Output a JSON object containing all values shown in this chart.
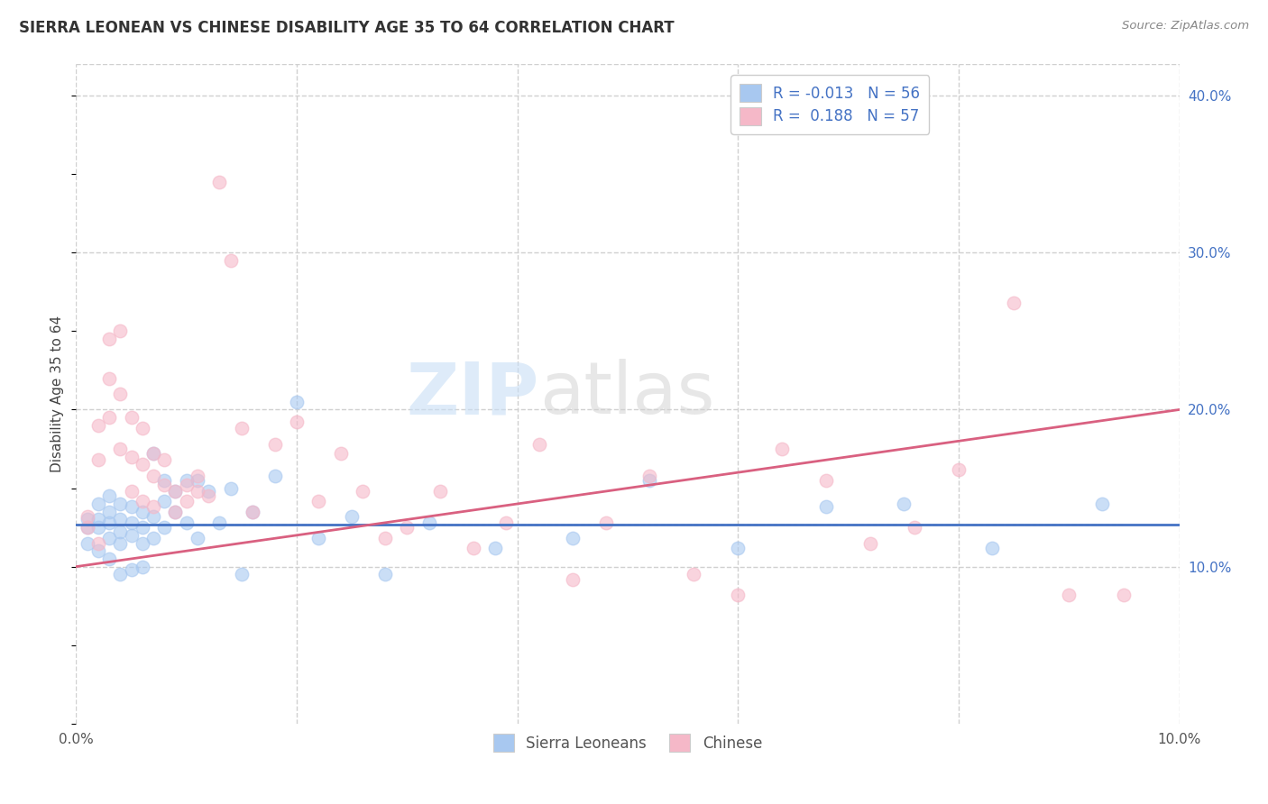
{
  "title": "SIERRA LEONEAN VS CHINESE DISABILITY AGE 35 TO 64 CORRELATION CHART",
  "source": "Source: ZipAtlas.com",
  "ylabel": "Disability Age 35 to 64",
  "xlim": [
    0.0,
    0.1
  ],
  "ylim": [
    0.0,
    0.42
  ],
  "legend_labels": [
    "Sierra Leoneans",
    "Chinese"
  ],
  "legend_r": [
    "R = -0.013",
    "R =  0.188"
  ],
  "legend_n": [
    "N = 56",
    "N = 57"
  ],
  "blue_color": "#a8c8f0",
  "pink_color": "#f5b8c8",
  "blue_line_color": "#4472c4",
  "pink_line_color": "#d96080",
  "watermark_zip": "ZIP",
  "watermark_atlas": "atlas",
  "blue_scatter_x": [
    0.001,
    0.001,
    0.001,
    0.002,
    0.002,
    0.002,
    0.002,
    0.003,
    0.003,
    0.003,
    0.003,
    0.003,
    0.004,
    0.004,
    0.004,
    0.004,
    0.004,
    0.005,
    0.005,
    0.005,
    0.005,
    0.006,
    0.006,
    0.006,
    0.006,
    0.007,
    0.007,
    0.007,
    0.008,
    0.008,
    0.008,
    0.009,
    0.009,
    0.01,
    0.01,
    0.011,
    0.011,
    0.012,
    0.013,
    0.014,
    0.015,
    0.016,
    0.018,
    0.02,
    0.022,
    0.025,
    0.028,
    0.032,
    0.038,
    0.045,
    0.052,
    0.06,
    0.068,
    0.075,
    0.083,
    0.093
  ],
  "blue_scatter_y": [
    0.13,
    0.125,
    0.115,
    0.14,
    0.13,
    0.125,
    0.11,
    0.145,
    0.135,
    0.128,
    0.118,
    0.105,
    0.14,
    0.13,
    0.122,
    0.115,
    0.095,
    0.138,
    0.128,
    0.12,
    0.098,
    0.135,
    0.125,
    0.115,
    0.1,
    0.172,
    0.132,
    0.118,
    0.155,
    0.142,
    0.125,
    0.148,
    0.135,
    0.155,
    0.128,
    0.155,
    0.118,
    0.148,
    0.128,
    0.15,
    0.095,
    0.135,
    0.158,
    0.205,
    0.118,
    0.132,
    0.095,
    0.128,
    0.112,
    0.118,
    0.155,
    0.112,
    0.138,
    0.14,
    0.112,
    0.14
  ],
  "pink_scatter_x": [
    0.001,
    0.001,
    0.002,
    0.002,
    0.002,
    0.003,
    0.003,
    0.003,
    0.004,
    0.004,
    0.004,
    0.005,
    0.005,
    0.005,
    0.006,
    0.006,
    0.006,
    0.007,
    0.007,
    0.007,
    0.008,
    0.008,
    0.009,
    0.009,
    0.01,
    0.01,
    0.011,
    0.011,
    0.012,
    0.013,
    0.014,
    0.015,
    0.016,
    0.018,
    0.02,
    0.022,
    0.024,
    0.026,
    0.028,
    0.03,
    0.033,
    0.036,
    0.039,
    0.042,
    0.045,
    0.048,
    0.052,
    0.056,
    0.06,
    0.064,
    0.068,
    0.072,
    0.076,
    0.08,
    0.085,
    0.09,
    0.095
  ],
  "pink_scatter_y": [
    0.132,
    0.125,
    0.19,
    0.168,
    0.115,
    0.245,
    0.22,
    0.195,
    0.25,
    0.21,
    0.175,
    0.195,
    0.17,
    0.148,
    0.188,
    0.165,
    0.142,
    0.172,
    0.158,
    0.138,
    0.168,
    0.152,
    0.148,
    0.135,
    0.152,
    0.142,
    0.158,
    0.148,
    0.145,
    0.345,
    0.295,
    0.188,
    0.135,
    0.178,
    0.192,
    0.142,
    0.172,
    0.148,
    0.118,
    0.125,
    0.148,
    0.112,
    0.128,
    0.178,
    0.092,
    0.128,
    0.158,
    0.095,
    0.082,
    0.175,
    0.155,
    0.115,
    0.125,
    0.162,
    0.268,
    0.082,
    0.082
  ]
}
